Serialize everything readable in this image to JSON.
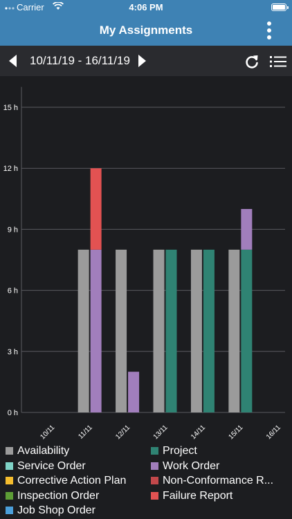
{
  "status_bar": {
    "carrier": "Carrier",
    "time": "4:06 PM"
  },
  "header": {
    "title": "My Assignments"
  },
  "date_nav": {
    "range": "10/11/19 - 16/11/19"
  },
  "chart_data": {
    "type": "bar",
    "stacked": true,
    "categories": [
      "10/11",
      "11/11",
      "12/11",
      "13/11",
      "14/11",
      "15/11",
      "16/11"
    ],
    "y_unit": "h",
    "ylim": [
      0,
      16
    ],
    "yticks": [
      0,
      3,
      6,
      9,
      12,
      15
    ],
    "grid": true,
    "bars": [
      {
        "category": "10/11",
        "stacks": []
      },
      {
        "category": "11/11",
        "stacks": [
          {
            "group": "availability",
            "segments": [
              {
                "series": "Availability",
                "value": 8
              }
            ]
          },
          {
            "group": "assignments",
            "segments": [
              {
                "series": "Work Order",
                "value": 8
              },
              {
                "series": "Failure Report",
                "value": 4
              }
            ]
          }
        ]
      },
      {
        "category": "12/11",
        "stacks": [
          {
            "group": "availability",
            "segments": [
              {
                "series": "Availability",
                "value": 8
              }
            ]
          },
          {
            "group": "assignments",
            "segments": [
              {
                "series": "Work Order",
                "value": 2
              }
            ]
          }
        ]
      },
      {
        "category": "13/11",
        "stacks": [
          {
            "group": "availability",
            "segments": [
              {
                "series": "Availability",
                "value": 8
              }
            ]
          },
          {
            "group": "assignments",
            "segments": [
              {
                "series": "Project",
                "value": 8
              }
            ]
          }
        ]
      },
      {
        "category": "14/11",
        "stacks": [
          {
            "group": "availability",
            "segments": [
              {
                "series": "Availability",
                "value": 8
              }
            ]
          },
          {
            "group": "assignments",
            "segments": [
              {
                "series": "Project",
                "value": 8
              }
            ]
          }
        ]
      },
      {
        "category": "15/11",
        "stacks": [
          {
            "group": "availability",
            "segments": [
              {
                "series": "Availability",
                "value": 8
              }
            ]
          },
          {
            "group": "assignments",
            "segments": [
              {
                "series": "Project",
                "value": 8
              },
              {
                "series": "Work Order",
                "value": 2
              }
            ]
          }
        ]
      },
      {
        "category": "16/11",
        "stacks": []
      }
    ]
  },
  "legend": [
    {
      "label": "Availability",
      "color": "#9b9b9b"
    },
    {
      "label": "Project",
      "color": "#2f8373"
    },
    {
      "label": "Service Order",
      "color": "#7fd3c7"
    },
    {
      "label": "Work Order",
      "color": "#a17ebc"
    },
    {
      "label": "Corrective Action Plan",
      "color": "#f5bd2e"
    },
    {
      "label": "Non-Conformance R...",
      "color": "#c2484b"
    },
    {
      "label": "Inspection Order",
      "color": "#5d9d36"
    },
    {
      "label": "Failure Report",
      "color": "#e25252"
    },
    {
      "label": "Job Shop Order",
      "color": "#4b9fda"
    }
  ]
}
